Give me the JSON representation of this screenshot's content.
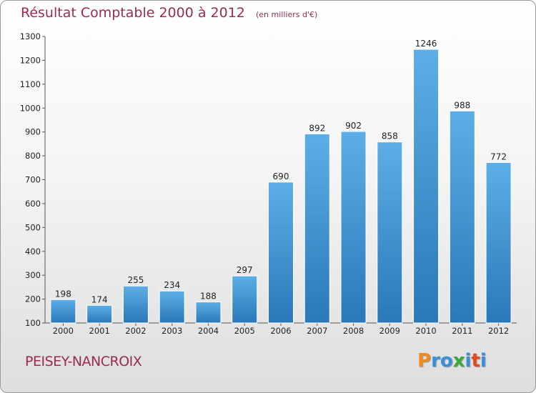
{
  "chart_data": {
    "type": "bar",
    "title": "Résultat Comptable 2000 à 2012",
    "subtitle": "(en milliers d'€)",
    "categories": [
      "2000",
      "2001",
      "2002",
      "2003",
      "2004",
      "2005",
      "2006",
      "2007",
      "2008",
      "2009",
      "2010",
      "2011",
      "2012"
    ],
    "values": [
      198,
      174,
      255,
      234,
      188,
      297,
      690,
      892,
      902,
      858,
      1246,
      988,
      772
    ],
    "yticks": [
      100,
      200,
      300,
      400,
      500,
      600,
      700,
      800,
      900,
      1000,
      1100,
      1200,
      1300
    ],
    "ylim": [
      100,
      1300
    ],
    "xlabel": "",
    "ylabel": "",
    "grid": false,
    "bar_color_top": "#5daee6",
    "bar_color_bottom": "#2a78b8"
  },
  "footer": {
    "commune": "PEISEY-NANCROIX",
    "logo": {
      "letters": [
        "P",
        "r",
        "o",
        "x",
        "i",
        "t",
        "i"
      ],
      "colors": [
        "#f08a1c",
        "#3a8fd8",
        "#3a8fd8",
        "#3aa83a",
        "#3a8fd8",
        "#e04a1c",
        "#3a8fd8"
      ]
    }
  }
}
